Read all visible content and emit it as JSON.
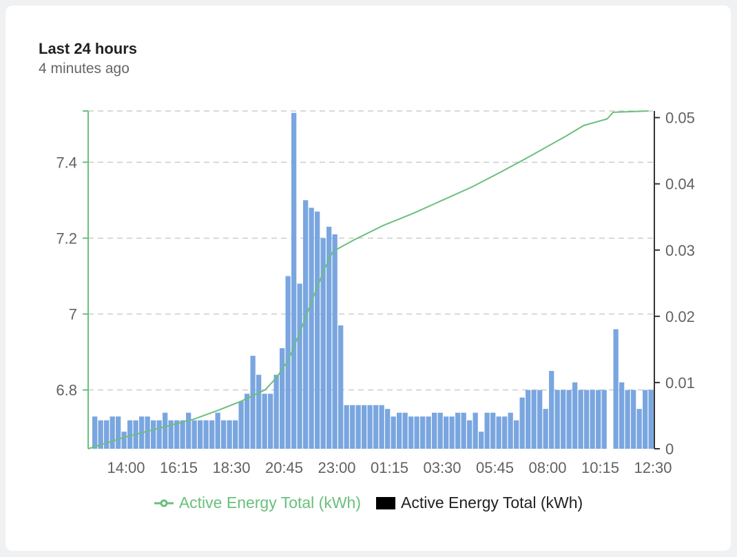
{
  "card": {
    "title": "Last 24 hours",
    "subtitle": "4 minutes ago"
  },
  "legend": {
    "line_label": "Active Energy Total (kWh)",
    "bar_label": "Active Energy Total (kWh)"
  },
  "colors": {
    "line": "#6abf7d",
    "bars": "#7aa6e0",
    "grid": "#cccccc",
    "axis_left": "#6abf7d",
    "axis_right": "#333333",
    "bar_legend_box": "#000000"
  },
  "chart_data": {
    "type": "bar",
    "x_tick_labels": [
      "14:00",
      "16:15",
      "18:30",
      "20:45",
      "23:00",
      "01:15",
      "03:30",
      "05:45",
      "08:00",
      "10:15",
      "12:30"
    ],
    "left_axis": {
      "ticks": [
        "6.8",
        "7",
        "7.2",
        "7.4"
      ],
      "ylim": [
        6.645,
        7.535
      ]
    },
    "right_axis": {
      "ticks": [
        "0",
        "0.01",
        "0.02",
        "0.03",
        "0.04",
        "0.05"
      ],
      "ylim": [
        0,
        0.051
      ]
    },
    "grid": true,
    "legend_position": "bottom-center",
    "series": [
      {
        "name": "Active Energy Total (kWh)",
        "kind": "bar",
        "axis": "left",
        "values": [
          6.73,
          6.72,
          6.72,
          6.73,
          6.73,
          6.69,
          6.72,
          6.72,
          6.73,
          6.73,
          6.72,
          6.72,
          6.74,
          6.72,
          6.72,
          6.72,
          6.74,
          6.72,
          6.72,
          6.72,
          6.72,
          6.74,
          6.72,
          6.72,
          6.72,
          6.77,
          6.79,
          6.89,
          6.84,
          6.79,
          6.79,
          6.84,
          6.91,
          7.1,
          7.53,
          7.08,
          7.3,
          7.28,
          7.27,
          7.2,
          7.23,
          7.21,
          6.97,
          6.76,
          6.76,
          6.76,
          6.76,
          6.76,
          6.76,
          6.76,
          6.75,
          6.73,
          6.74,
          6.74,
          6.73,
          6.73,
          6.73,
          6.73,
          6.74,
          6.74,
          6.73,
          6.73,
          6.74,
          6.74,
          6.72,
          6.74,
          6.69,
          6.74,
          6.74,
          6.73,
          6.73,
          6.74,
          6.72,
          6.78,
          6.8,
          6.8,
          6.8,
          6.75,
          6.85,
          6.8,
          6.8,
          6.8,
          6.82,
          6.8,
          6.8,
          6.8,
          6.8,
          6.8,
          null,
          6.96,
          6.82,
          6.8,
          6.8,
          6.75,
          6.8,
          6.8
        ]
      },
      {
        "name": "Active Energy Total (kWh)",
        "kind": "line",
        "axis": "right",
        "points": [
          [
            0,
            0.0
          ],
          [
            6,
            0.0017
          ],
          [
            12,
            0.0031
          ],
          [
            18,
            0.0045
          ],
          [
            22,
            0.0058
          ],
          [
            26,
            0.0072
          ],
          [
            30,
            0.0089
          ],
          [
            32,
            0.0108
          ],
          [
            34,
            0.0135
          ],
          [
            36,
            0.0178
          ],
          [
            38,
            0.0225
          ],
          [
            40,
            0.027
          ],
          [
            41.5,
            0.0298
          ],
          [
            45,
            0.0315
          ],
          [
            50,
            0.0337
          ],
          [
            55,
            0.0355
          ],
          [
            60,
            0.0375
          ],
          [
            65,
            0.0395
          ],
          [
            70,
            0.0418
          ],
          [
            75,
            0.0442
          ],
          [
            81,
            0.0472
          ],
          [
            84,
            0.0488
          ],
          [
            88,
            0.0498
          ],
          [
            89,
            0.0508
          ],
          [
            95,
            0.051
          ]
        ]
      }
    ]
  }
}
